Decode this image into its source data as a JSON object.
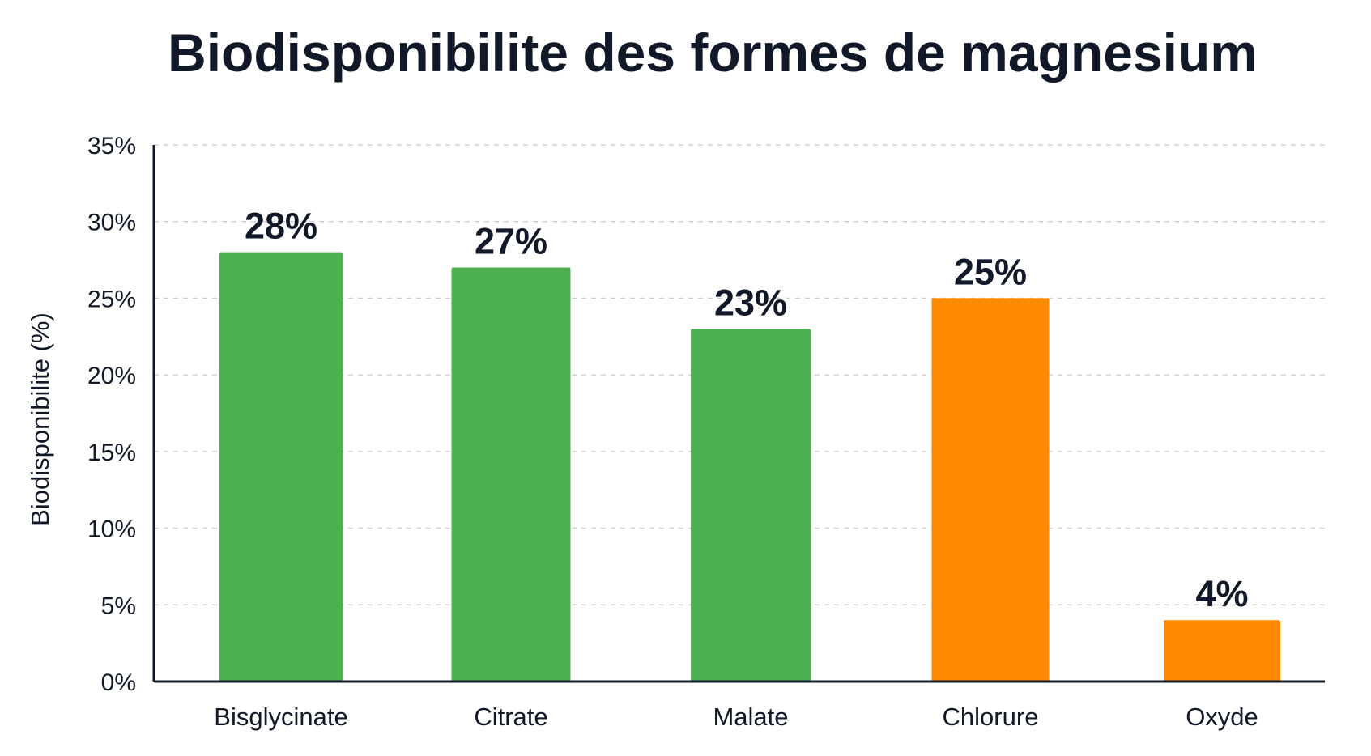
{
  "chart_data": {
    "type": "bar",
    "title": "Biodisponibilite des formes de magnesium",
    "xlabel": "",
    "ylabel": "Biodisponibilite (%)",
    "categories": [
      "Bisglycinate",
      "Citrate",
      "Malate",
      "Chlorure",
      "Oxyde"
    ],
    "values": [
      28,
      27,
      23,
      25,
      4
    ],
    "value_labels": [
      "28%",
      "27%",
      "23%",
      "25%",
      "4%"
    ],
    "bar_colors": [
      "#4caf50",
      "#4caf50",
      "#4caf50",
      "#ff8a00",
      "#ff8a00"
    ],
    "ylim": [
      0,
      35
    ],
    "yticks": [
      0,
      5,
      10,
      15,
      20,
      25,
      30,
      35
    ],
    "ytick_labels": [
      "0%",
      "5%",
      "10%",
      "15%",
      "20%",
      "25%",
      "30%",
      "35%"
    ],
    "grid": "horizontal dashed",
    "legend": "none"
  },
  "colors": {
    "text": "#111827",
    "axis": "#111827",
    "grid": "#cfcfcf"
  }
}
